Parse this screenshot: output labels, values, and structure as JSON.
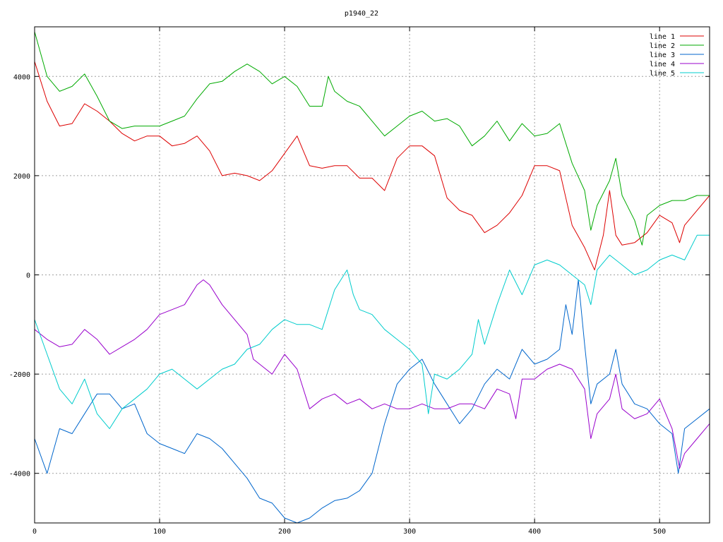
{
  "chart_data": {
    "type": "line",
    "title": "p1940_22",
    "xlabel": "",
    "ylabel": "",
    "xlim": [
      0,
      540
    ],
    "ylim": [
      -5000,
      5000
    ],
    "x_ticks": [
      0,
      100,
      200,
      300,
      400,
      500
    ],
    "y_ticks": [
      -4000,
      -2000,
      0,
      2000,
      4000
    ],
    "grid": true,
    "legend_position": "top-right",
    "series": [
      {
        "name": "line 1",
        "color": "#dd0000",
        "points": [
          [
            0,
            4300
          ],
          [
            10,
            3500
          ],
          [
            20,
            3000
          ],
          [
            30,
            3050
          ],
          [
            40,
            3450
          ],
          [
            50,
            3300
          ],
          [
            60,
            3100
          ],
          [
            70,
            2850
          ],
          [
            80,
            2700
          ],
          [
            90,
            2800
          ],
          [
            100,
            2800
          ],
          [
            110,
            2600
          ],
          [
            120,
            2650
          ],
          [
            130,
            2800
          ],
          [
            140,
            2500
          ],
          [
            150,
            2000
          ],
          [
            160,
            2050
          ],
          [
            170,
            2000
          ],
          [
            180,
            1900
          ],
          [
            190,
            2100
          ],
          [
            200,
            2450
          ],
          [
            210,
            2800
          ],
          [
            215,
            2500
          ],
          [
            220,
            2200
          ],
          [
            230,
            2150
          ],
          [
            240,
            2200
          ],
          [
            250,
            2200
          ],
          [
            260,
            1950
          ],
          [
            270,
            1950
          ],
          [
            280,
            1700
          ],
          [
            290,
            2350
          ],
          [
            300,
            2600
          ],
          [
            310,
            2600
          ],
          [
            320,
            2400
          ],
          [
            330,
            1550
          ],
          [
            340,
            1300
          ],
          [
            350,
            1200
          ],
          [
            360,
            850
          ],
          [
            370,
            1000
          ],
          [
            380,
            1250
          ],
          [
            390,
            1600
          ],
          [
            400,
            2200
          ],
          [
            410,
            2200
          ],
          [
            420,
            2100
          ],
          [
            430,
            1000
          ],
          [
            440,
            550
          ],
          [
            448,
            100
          ],
          [
            455,
            800
          ],
          [
            460,
            1700
          ],
          [
            465,
            800
          ],
          [
            470,
            600
          ],
          [
            480,
            650
          ],
          [
            490,
            850
          ],
          [
            500,
            1200
          ],
          [
            510,
            1050
          ],
          [
            516,
            650
          ],
          [
            520,
            1000
          ],
          [
            530,
            1300
          ],
          [
            540,
            1600
          ]
        ]
      },
      {
        "name": "line 2",
        "color": "#00aa00",
        "points": [
          [
            0,
            4900
          ],
          [
            10,
            4000
          ],
          [
            20,
            3700
          ],
          [
            30,
            3800
          ],
          [
            40,
            4050
          ],
          [
            50,
            3600
          ],
          [
            60,
            3100
          ],
          [
            70,
            2950
          ],
          [
            80,
            3000
          ],
          [
            90,
            3000
          ],
          [
            100,
            3000
          ],
          [
            110,
            3100
          ],
          [
            120,
            3200
          ],
          [
            130,
            3550
          ],
          [
            140,
            3850
          ],
          [
            150,
            3900
          ],
          [
            160,
            4100
          ],
          [
            170,
            4250
          ],
          [
            180,
            4100
          ],
          [
            190,
            3850
          ],
          [
            200,
            4000
          ],
          [
            210,
            3800
          ],
          [
            220,
            3400
          ],
          [
            230,
            3400
          ],
          [
            235,
            4000
          ],
          [
            240,
            3700
          ],
          [
            250,
            3500
          ],
          [
            260,
            3400
          ],
          [
            270,
            3100
          ],
          [
            280,
            2800
          ],
          [
            290,
            3000
          ],
          [
            300,
            3200
          ],
          [
            310,
            3300
          ],
          [
            320,
            3100
          ],
          [
            330,
            3150
          ],
          [
            340,
            3000
          ],
          [
            350,
            2600
          ],
          [
            360,
            2800
          ],
          [
            370,
            3100
          ],
          [
            380,
            2700
          ],
          [
            390,
            3050
          ],
          [
            400,
            2800
          ],
          [
            410,
            2850
          ],
          [
            420,
            3050
          ],
          [
            430,
            2250
          ],
          [
            440,
            1700
          ],
          [
            445,
            900
          ],
          [
            450,
            1400
          ],
          [
            460,
            1900
          ],
          [
            465,
            2350
          ],
          [
            470,
            1600
          ],
          [
            480,
            1100
          ],
          [
            486,
            600
          ],
          [
            490,
            1200
          ],
          [
            500,
            1400
          ],
          [
            510,
            1500
          ],
          [
            520,
            1500
          ],
          [
            530,
            1600
          ],
          [
            540,
            1600
          ]
        ]
      },
      {
        "name": "line 3",
        "color": "#0066cc",
        "points": [
          [
            0,
            -3300
          ],
          [
            10,
            -4000
          ],
          [
            20,
            -3100
          ],
          [
            30,
            -3200
          ],
          [
            40,
            -2800
          ],
          [
            50,
            -2400
          ],
          [
            60,
            -2400
          ],
          [
            70,
            -2700
          ],
          [
            80,
            -2600
          ],
          [
            90,
            -3200
          ],
          [
            100,
            -3400
          ],
          [
            110,
            -3500
          ],
          [
            120,
            -3600
          ],
          [
            130,
            -3200
          ],
          [
            140,
            -3300
          ],
          [
            150,
            -3500
          ],
          [
            160,
            -3800
          ],
          [
            170,
            -4100
          ],
          [
            180,
            -4500
          ],
          [
            190,
            -4600
          ],
          [
            200,
            -4900
          ],
          [
            210,
            -5000
          ],
          [
            220,
            -4900
          ],
          [
            230,
            -4700
          ],
          [
            240,
            -4550
          ],
          [
            250,
            -4500
          ],
          [
            260,
            -4350
          ],
          [
            270,
            -4000
          ],
          [
            280,
            -3000
          ],
          [
            290,
            -2200
          ],
          [
            300,
            -1900
          ],
          [
            310,
            -1700
          ],
          [
            320,
            -2200
          ],
          [
            330,
            -2600
          ],
          [
            340,
            -3000
          ],
          [
            350,
            -2700
          ],
          [
            360,
            -2200
          ],
          [
            370,
            -1900
          ],
          [
            380,
            -2100
          ],
          [
            390,
            -1500
          ],
          [
            400,
            -1800
          ],
          [
            410,
            -1700
          ],
          [
            420,
            -1500
          ],
          [
            425,
            -600
          ],
          [
            430,
            -1200
          ],
          [
            435,
            -100
          ],
          [
            440,
            -1400
          ],
          [
            445,
            -2600
          ],
          [
            450,
            -2200
          ],
          [
            460,
            -2000
          ],
          [
            465,
            -1500
          ],
          [
            470,
            -2200
          ],
          [
            480,
            -2600
          ],
          [
            490,
            -2700
          ],
          [
            500,
            -3000
          ],
          [
            510,
            -3200
          ],
          [
            515,
            -4000
          ],
          [
            520,
            -3100
          ],
          [
            530,
            -2900
          ],
          [
            540,
            -2700
          ]
        ]
      },
      {
        "name": "line 4",
        "color": "#9900cc",
        "points": [
          [
            0,
            -1100
          ],
          [
            10,
            -1300
          ],
          [
            20,
            -1450
          ],
          [
            30,
            -1400
          ],
          [
            40,
            -1100
          ],
          [
            50,
            -1300
          ],
          [
            60,
            -1600
          ],
          [
            70,
            -1450
          ],
          [
            80,
            -1300
          ],
          [
            90,
            -1100
          ],
          [
            100,
            -800
          ],
          [
            110,
            -700
          ],
          [
            120,
            -600
          ],
          [
            130,
            -200
          ],
          [
            135,
            -100
          ],
          [
            140,
            -200
          ],
          [
            150,
            -600
          ],
          [
            160,
            -900
          ],
          [
            170,
            -1200
          ],
          [
            175,
            -1700
          ],
          [
            180,
            -1800
          ],
          [
            190,
            -2000
          ],
          [
            200,
            -1600
          ],
          [
            210,
            -1900
          ],
          [
            220,
            -2700
          ],
          [
            230,
            -2500
          ],
          [
            240,
            -2400
          ],
          [
            250,
            -2600
          ],
          [
            260,
            -2500
          ],
          [
            270,
            -2700
          ],
          [
            280,
            -2600
          ],
          [
            290,
            -2700
          ],
          [
            300,
            -2700
          ],
          [
            310,
            -2600
          ],
          [
            320,
            -2700
          ],
          [
            330,
            -2700
          ],
          [
            340,
            -2600
          ],
          [
            350,
            -2600
          ],
          [
            360,
            -2700
          ],
          [
            370,
            -2300
          ],
          [
            380,
            -2400
          ],
          [
            385,
            -2900
          ],
          [
            390,
            -2100
          ],
          [
            400,
            -2100
          ],
          [
            410,
            -1900
          ],
          [
            420,
            -1800
          ],
          [
            430,
            -1900
          ],
          [
            440,
            -2300
          ],
          [
            445,
            -3300
          ],
          [
            450,
            -2800
          ],
          [
            460,
            -2500
          ],
          [
            465,
            -2000
          ],
          [
            470,
            -2700
          ],
          [
            480,
            -2900
          ],
          [
            490,
            -2800
          ],
          [
            500,
            -2500
          ],
          [
            510,
            -3100
          ],
          [
            516,
            -3900
          ],
          [
            520,
            -3600
          ],
          [
            530,
            -3300
          ],
          [
            540,
            -3000
          ]
        ]
      },
      {
        "name": "line 5",
        "color": "#00cccc",
        "points": [
          [
            0,
            -900
          ],
          [
            10,
            -1600
          ],
          [
            20,
            -2300
          ],
          [
            30,
            -2600
          ],
          [
            40,
            -2100
          ],
          [
            50,
            -2800
          ],
          [
            60,
            -3100
          ],
          [
            70,
            -2700
          ],
          [
            80,
            -2500
          ],
          [
            90,
            -2300
          ],
          [
            100,
            -2000
          ],
          [
            110,
            -1900
          ],
          [
            120,
            -2100
          ],
          [
            130,
            -2300
          ],
          [
            140,
            -2100
          ],
          [
            150,
            -1900
          ],
          [
            160,
            -1800
          ],
          [
            170,
            -1500
          ],
          [
            180,
            -1400
          ],
          [
            190,
            -1100
          ],
          [
            200,
            -900
          ],
          [
            210,
            -1000
          ],
          [
            220,
            -1000
          ],
          [
            230,
            -1100
          ],
          [
            240,
            -300
          ],
          [
            250,
            100
          ],
          [
            255,
            -400
          ],
          [
            260,
            -700
          ],
          [
            270,
            -800
          ],
          [
            280,
            -1100
          ],
          [
            290,
            -1300
          ],
          [
            300,
            -1500
          ],
          [
            310,
            -1800
          ],
          [
            315,
            -2800
          ],
          [
            320,
            -2000
          ],
          [
            330,
            -2100
          ],
          [
            340,
            -1900
          ],
          [
            350,
            -1600
          ],
          [
            355,
            -900
          ],
          [
            360,
            -1400
          ],
          [
            370,
            -600
          ],
          [
            380,
            100
          ],
          [
            390,
            -400
          ],
          [
            400,
            200
          ],
          [
            410,
            300
          ],
          [
            420,
            200
          ],
          [
            430,
            0
          ],
          [
            440,
            -200
          ],
          [
            445,
            -600
          ],
          [
            450,
            100
          ],
          [
            460,
            400
          ],
          [
            470,
            200
          ],
          [
            480,
            0
          ],
          [
            490,
            100
          ],
          [
            500,
            300
          ],
          [
            510,
            400
          ],
          [
            520,
            300
          ],
          [
            530,
            800
          ],
          [
            540,
            800
          ]
        ]
      }
    ]
  }
}
